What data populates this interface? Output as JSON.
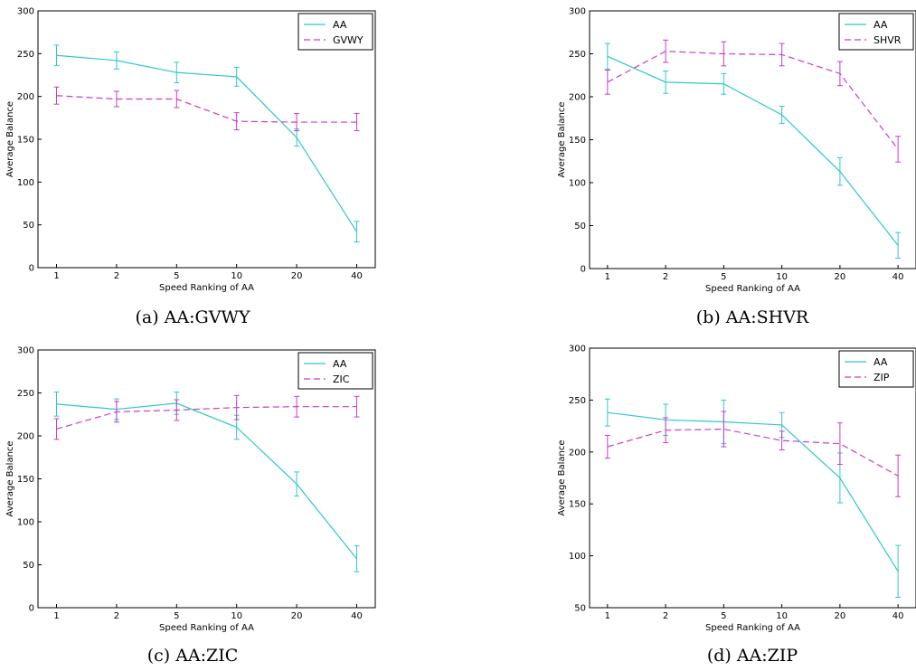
{
  "colors": {
    "aa": "#2ec8c8",
    "opponent": "#c83cc8",
    "axis": "#000000"
  },
  "chart_data": [
    {
      "type": "line",
      "caption": "(a) AA:GVWY",
      "xlabel": "Speed Ranking of AA",
      "ylabel": "Average Balance",
      "categories": [
        "1",
        "2",
        "5",
        "10",
        "20",
        "40"
      ],
      "ylim": [
        0,
        300
      ],
      "yticks": [
        0,
        50,
        100,
        150,
        200,
        250,
        300
      ],
      "legend_position": "top-right",
      "series": [
        {
          "name": "AA",
          "style": "solid",
          "values": [
            248,
            242,
            228,
            223,
            152,
            42
          ],
          "errors": [
            12,
            10,
            12,
            11,
            10,
            12
          ]
        },
        {
          "name": "GVWY",
          "style": "dashed",
          "values": [
            201,
            197,
            197,
            171,
            170,
            170
          ],
          "errors": [
            10,
            9,
            10,
            10,
            10,
            10
          ]
        }
      ]
    },
    {
      "type": "line",
      "caption": "(b) AA:SHVR",
      "xlabel": "Speed Ranking of AA",
      "ylabel": "Average Balance",
      "categories": [
        "1",
        "2",
        "5",
        "10",
        "20",
        "40"
      ],
      "ylim": [
        0,
        300
      ],
      "yticks": [
        0,
        50,
        100,
        150,
        200,
        250,
        300
      ],
      "legend_position": "top-right",
      "series": [
        {
          "name": "AA",
          "style": "solid",
          "values": [
            247,
            217,
            215,
            179,
            113,
            27
          ],
          "errors": [
            15,
            13,
            12,
            10,
            16,
            15
          ]
        },
        {
          "name": "SHVR",
          "style": "dashed",
          "values": [
            217,
            253,
            250,
            249,
            227,
            139
          ],
          "errors": [
            14,
            13,
            14,
            13,
            14,
            15
          ]
        }
      ]
    },
    {
      "type": "line",
      "caption": "(c) AA:ZIC",
      "xlabel": "Speed Ranking of AA",
      "ylabel": "Average Balance",
      "categories": [
        "1",
        "2",
        "5",
        "10",
        "20",
        "40"
      ],
      "ylim": [
        0,
        300
      ],
      "yticks": [
        0,
        50,
        100,
        150,
        200,
        250,
        300
      ],
      "legend_position": "top-right",
      "series": [
        {
          "name": "AA",
          "style": "solid",
          "values": [
            237,
            231,
            238,
            210,
            144,
            57
          ],
          "errors": [
            14,
            12,
            13,
            14,
            14,
            15
          ]
        },
        {
          "name": "ZIC",
          "style": "dashed",
          "values": [
            208,
            228,
            230,
            233,
            234,
            234
          ],
          "errors": [
            12,
            12,
            12,
            14,
            12,
            12
          ]
        }
      ]
    },
    {
      "type": "line",
      "caption": "(d) AA:ZIP",
      "xlabel": "Speed Ranking of AA",
      "ylabel": "Average Balance",
      "categories": [
        "1",
        "2",
        "5",
        "10",
        "20",
        "40"
      ],
      "ylim": [
        50,
        300
      ],
      "yticks": [
        50,
        100,
        150,
        200,
        250,
        300
      ],
      "legend_position": "top-right",
      "series": [
        {
          "name": "AA",
          "style": "solid",
          "values": [
            238,
            231,
            229,
            226,
            175,
            85
          ],
          "errors": [
            13,
            15,
            21,
            12,
            24,
            25
          ]
        },
        {
          "name": "ZIP",
          "style": "dashed",
          "values": [
            205,
            221,
            222,
            211,
            208,
            177
          ],
          "errors": [
            11,
            12,
            17,
            9,
            20,
            20
          ]
        }
      ]
    }
  ]
}
